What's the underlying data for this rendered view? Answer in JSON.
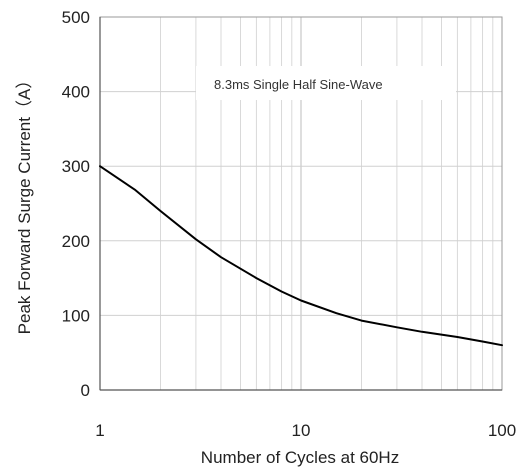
{
  "chart_data": {
    "type": "line",
    "title": "",
    "xlabel": "Number of Cycles at 60Hz",
    "ylabel": "Peak Forward Surge Current（A）",
    "x_scale": "log",
    "xlim": [
      1,
      100
    ],
    "ylim": [
      0,
      500
    ],
    "x_ticks": [
      1,
      10,
      100
    ],
    "x_tick_labels": [
      "1",
      "10",
      "100"
    ],
    "y_ticks": [
      0,
      100,
      200,
      300,
      400,
      500
    ],
    "y_tick_labels": [
      "0",
      "100",
      "200",
      "300",
      "400",
      "500"
    ],
    "grid": true,
    "legend": "none",
    "annotation": "8.3ms Single Half Sine-Wave",
    "series": [
      {
        "color": "#000000",
        "x": [
          1,
          1.5,
          2,
          3,
          4,
          6,
          8,
          10,
          15,
          20,
          30,
          40,
          60,
          80,
          100
        ],
        "y": [
          300,
          268,
          240,
          202,
          178,
          150,
          132,
          120,
          103,
          93,
          84,
          78,
          71,
          65,
          60
        ]
      }
    ]
  }
}
